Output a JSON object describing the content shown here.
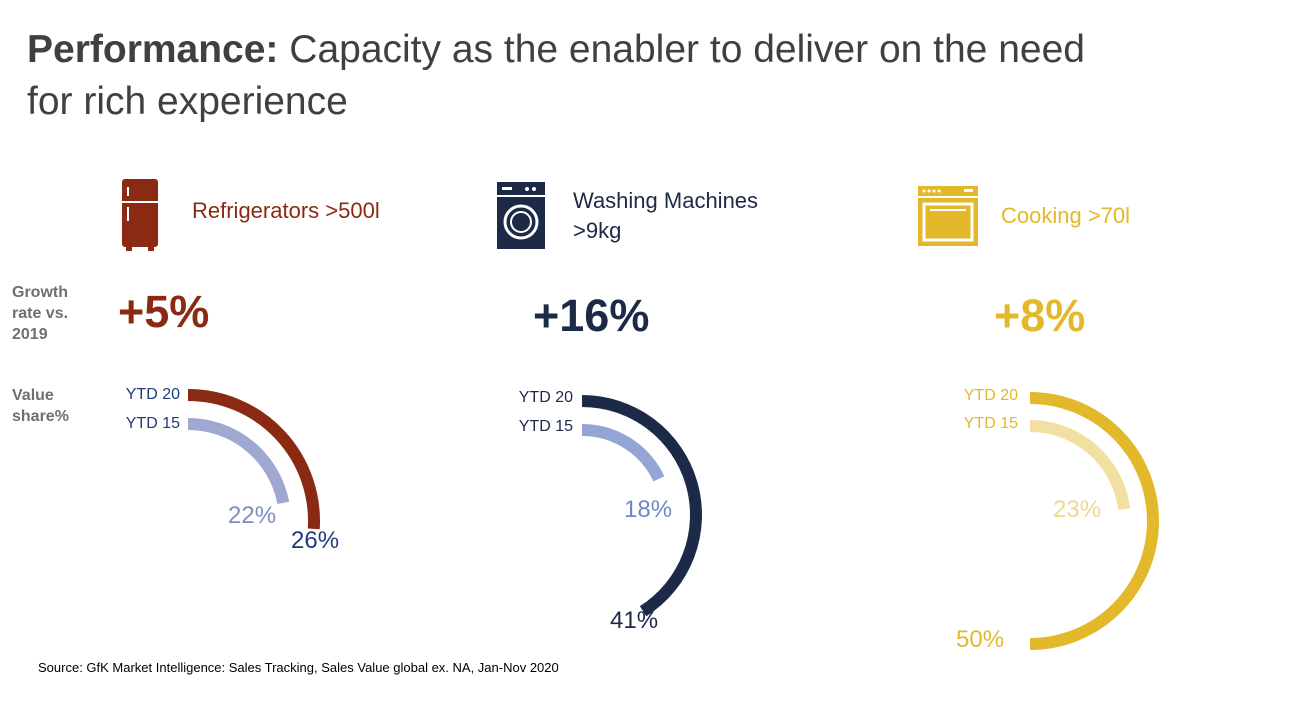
{
  "title": {
    "bold": "Performance:",
    "rest": " Capacity as the enabler to deliver on the need for rich experience"
  },
  "side_labels": {
    "growth": "Growth rate vs. 2019",
    "value_share": "Value share%"
  },
  "colors": {
    "refrigerators": "#8b2a12",
    "refrigerators_light": "#9ea8d0",
    "refrigerators_text": "#1f3b7a",
    "washing": "#1c2a48",
    "washing_light": "#94a4d4",
    "washing_text": "#1c2a48",
    "cooking": "#e3b82a",
    "cooking_light": "#f2dfa2"
  },
  "source": "Source: GfK Market Intelligence:  Sales Tracking, Sales Value global ex. NA, Jan-Nov 2020",
  "chart_data": [
    {
      "type": "radial-bar",
      "category": "Refrigerators >500l",
      "icon": "refrigerator-icon",
      "growth": "+5%",
      "series": [
        {
          "name": "YTD 20",
          "value": 26,
          "label": "26%"
        },
        {
          "name": "YTD 15",
          "value": 22,
          "label": "22%"
        }
      ]
    },
    {
      "type": "radial-bar",
      "category": "Washing Machines >9kg",
      "icon": "washing-machine-icon",
      "growth": "+16%",
      "series": [
        {
          "name": "YTD 20",
          "value": 41,
          "label": "41%"
        },
        {
          "name": "YTD 15",
          "value": 18,
          "label": "18%"
        }
      ]
    },
    {
      "type": "radial-bar",
      "category": "Cooking >70l",
      "icon": "oven-icon",
      "growth": "+8%",
      "series": [
        {
          "name": "YTD 20",
          "value": 50,
          "label": "50%"
        },
        {
          "name": "YTD 15",
          "value": 23,
          "label": "23%"
        }
      ]
    }
  ]
}
